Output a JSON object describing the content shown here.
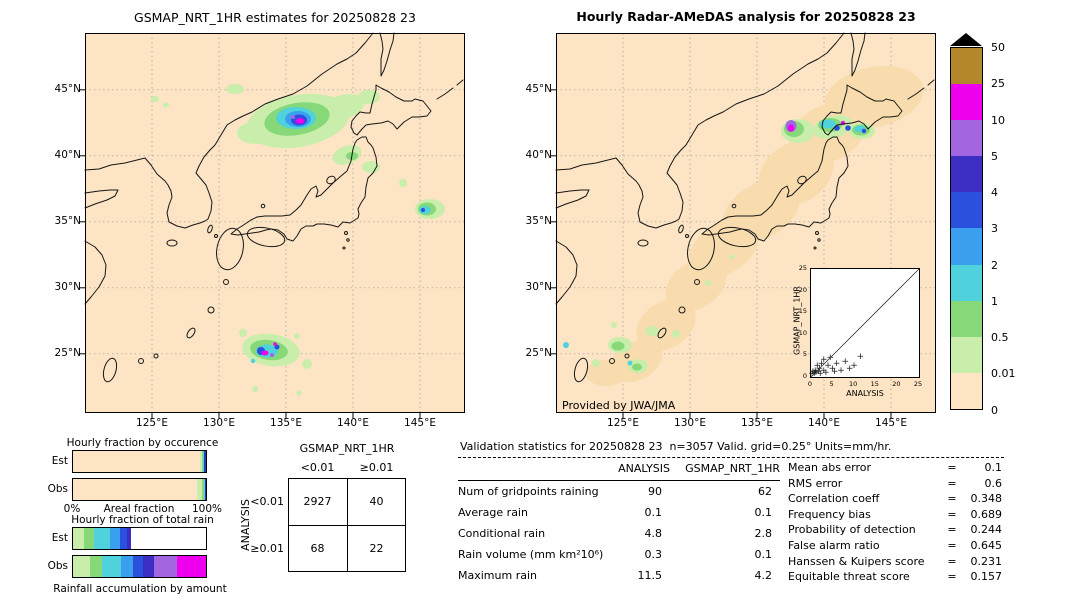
{
  "left_map": {
    "title": "GSMAP_NRT_1HR estimates for 20250828 23",
    "lat_labels": [
      "45°N",
      "40°N",
      "35°N",
      "30°N",
      "25°N"
    ],
    "lon_labels": [
      "125°E",
      "130°E",
      "135°E",
      "140°E",
      "145°E"
    ]
  },
  "right_map": {
    "title": "Hourly Radar-AMeDAS analysis for 20250828 23",
    "credit": "Provided by JWA/JMA",
    "lat_labels": [
      "45°N",
      "40°N",
      "35°N",
      "30°N",
      "25°N"
    ],
    "lon_labels": [
      "125°E",
      "130°E",
      "135°E",
      "140°E",
      "145°E"
    ]
  },
  "colorbar": {
    "labels": [
      "50",
      "25",
      "10",
      "5",
      "4",
      "3",
      "2",
      "1",
      "0.5",
      "0.01",
      "0"
    ],
    "segment_colors_top_to_bottom": [
      "#b5872c",
      "#ee00ee",
      "#a266e0",
      "#3c2ec2",
      "#2a50dd",
      "#3b9ff0",
      "#4fd2dc",
      "#86d878",
      "#c9eeab",
      "#fce4c4"
    ],
    "over_range_color": "#000000"
  },
  "chart_data": [
    {
      "id": "occurrence",
      "type": "bar",
      "title": "Hourly fraction by occurence",
      "categories": [
        "Est",
        "Obs"
      ],
      "x_axis": {
        "min_label": "0%",
        "max_label": "100%",
        "title": "Areal fraction"
      },
      "bars": {
        "Est": [
          {
            "class": "0",
            "pct": 95.6,
            "color": "#fce4c4"
          },
          {
            "class": "0.01-0.5",
            "pct": 1.6,
            "color": "#c9eeab"
          },
          {
            "class": "0.5-1",
            "pct": 0.8,
            "color": "#86d878"
          },
          {
            "class": "1-2",
            "pct": 0.5,
            "color": "#4fd2dc"
          },
          {
            "class": ">2",
            "pct": 1.5,
            "color": "#2a3db8"
          }
        ],
        "Obs": [
          {
            "class": "0",
            "pct": 93.0,
            "color": "#fce4c4"
          },
          {
            "class": "0.01-0.5",
            "pct": 3.8,
            "color": "#c9eeab"
          },
          {
            "class": "0.5-1",
            "pct": 1.4,
            "color": "#86d878"
          },
          {
            "class": "1-2",
            "pct": 0.8,
            "color": "#4fd2dc"
          },
          {
            "class": ">2",
            "pct": 1.0,
            "color": "#2a3db8"
          }
        ]
      }
    },
    {
      "id": "total_rain",
      "type": "bar",
      "title": "Hourly fraction of total rain",
      "caption": "Rainfall accumulation by amount",
      "categories": [
        "Est",
        "Obs"
      ],
      "bars": {
        "Est": [
          {
            "class": "0.01-0.5",
            "pct": 8,
            "color": "#c9eeab"
          },
          {
            "class": "0.5-1",
            "pct": 8,
            "color": "#86d878"
          },
          {
            "class": "1-2",
            "pct": 12,
            "color": "#4fd2dc"
          },
          {
            "class": "2-3",
            "pct": 7,
            "color": "#3b9ff0"
          },
          {
            "class": "3-4",
            "pct": 6,
            "color": "#2a50dd"
          },
          {
            "class": "4-5",
            "pct": 3,
            "color": "#3c2ec2"
          }
        ],
        "Obs": [
          {
            "class": "0.01-0.5",
            "pct": 13,
            "color": "#c9eeab"
          },
          {
            "class": "0.5-1",
            "pct": 9,
            "color": "#86d878"
          },
          {
            "class": "1-2",
            "pct": 14,
            "color": "#4fd2dc"
          },
          {
            "class": "2-3",
            "pct": 9,
            "color": "#3b9ff0"
          },
          {
            "class": "3-4",
            "pct": 8,
            "color": "#2a50dd"
          },
          {
            "class": "4-5",
            "pct": 8,
            "color": "#3c2ec2"
          },
          {
            "class": "5-10",
            "pct": 17,
            "color": "#a266e0"
          },
          {
            "class": "10-25",
            "pct": 22,
            "color": "#ee00ee"
          }
        ]
      }
    },
    {
      "id": "contingency",
      "type": "table",
      "title": "GSMAP_NRT_1HR",
      "row_axis": "ANALYSIS",
      "col_labels": [
        "<0.01",
        "≥0.01"
      ],
      "row_labels": [
        "<0.01",
        "≥0.01"
      ],
      "values": [
        [
          2927,
          40
        ],
        [
          68,
          22
        ]
      ]
    },
    {
      "id": "inset_scatter",
      "type": "scatter",
      "xlabel": "ANALYSIS",
      "ylabel": "GSMAP_NRT_1HR",
      "xlim": [
        0,
        25
      ],
      "ylim": [
        0,
        25
      ],
      "ticks": [
        0,
        5,
        10,
        15,
        20,
        25
      ],
      "diagonal": true,
      "marker": "+",
      "points": [
        [
          0.3,
          0.2
        ],
        [
          0.5,
          0.6
        ],
        [
          0.8,
          0.3
        ],
        [
          1,
          1
        ],
        [
          1.2,
          0.4
        ],
        [
          1.5,
          2
        ],
        [
          1.8,
          0.8
        ],
        [
          2,
          1.5
        ],
        [
          2.2,
          0.3
        ],
        [
          2.5,
          2.5
        ],
        [
          3,
          1
        ],
        [
          3,
          3.5
        ],
        [
          3.5,
          0.5
        ],
        [
          4,
          2
        ],
        [
          4.5,
          4
        ],
        [
          5,
          1.5
        ],
        [
          5.5,
          0.8
        ],
        [
          6,
          2.5
        ],
        [
          7,
          1
        ],
        [
          8,
          3
        ],
        [
          9,
          1.5
        ],
        [
          10,
          2
        ],
        [
          11.5,
          4.2
        ]
      ]
    },
    {
      "id": "validation",
      "type": "table",
      "title": "Validation statistics for 20250828 23  n=3057 Valid. grid=0.25° Units=mm/hr.",
      "columns": [
        "ANALYSIS",
        "GSMAP_NRT_1HR"
      ],
      "eq": "=",
      "rows": [
        {
          "label": "Num of gridpoints raining",
          "values": [
            "90",
            "62"
          ]
        },
        {
          "label": "Average rain",
          "values": [
            "0.1",
            "0.1"
          ]
        },
        {
          "label": "Conditional rain",
          "values": [
            "4.8",
            "2.8"
          ]
        },
        {
          "label": "Rain volume (mm km²10⁶)",
          "values": [
            "0.3",
            "0.1"
          ]
        },
        {
          "label": "Maximum rain",
          "values": [
            "11.5",
            "4.2"
          ]
        }
      ],
      "extra_stats": [
        {
          "label": "Mean abs error",
          "value": "0.1"
        },
        {
          "label": "RMS error",
          "value": "0.6"
        },
        {
          "label": "Correlation coeff",
          "value": "0.348"
        },
        {
          "label": "Frequency bias",
          "value": "0.689"
        },
        {
          "label": "Probability of detection",
          "value": "0.244"
        },
        {
          "label": "False alarm ratio",
          "value": "0.645"
        },
        {
          "label": "Hanssen & Kuipers score",
          "value": "0.231"
        },
        {
          "label": "Equitable threat score",
          "value": "0.157"
        }
      ]
    }
  ]
}
